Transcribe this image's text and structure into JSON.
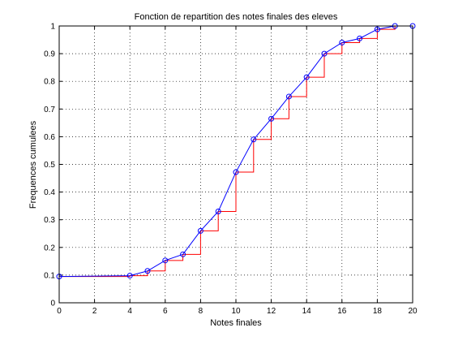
{
  "chart_data": {
    "type": "line",
    "title": "Fonction de repartition des notes finales des eleves",
    "xlabel": "Notes finales",
    "ylabel": "Frequences cumulees",
    "xlim": [
      0,
      20
    ],
    "ylim": [
      0,
      1
    ],
    "grid": true,
    "x_ticks": [
      0,
      2,
      4,
      6,
      8,
      10,
      12,
      14,
      16,
      18,
      20
    ],
    "y_ticks": [
      0,
      0.1,
      0.2,
      0.3,
      0.4,
      0.5,
      0.6,
      0.7,
      0.8,
      0.9,
      1
    ],
    "x": [
      0,
      4,
      5,
      6,
      7,
      8,
      9,
      10,
      11,
      12,
      13,
      14,
      15,
      16,
      17,
      18,
      19,
      20
    ],
    "series": [
      {
        "style": "line-with-circle-markers",
        "color": "#0000ff",
        "values": [
          0.095,
          0.098,
          0.115,
          0.153,
          0.175,
          0.26,
          0.33,
          0.472,
          0.59,
          0.665,
          0.745,
          0.815,
          0.9,
          0.94,
          0.955,
          0.988,
          1.0,
          1.0
        ]
      },
      {
        "style": "step",
        "color": "#ff0000",
        "values": [
          0.095,
          0.098,
          0.115,
          0.153,
          0.175,
          0.26,
          0.33,
          0.472,
          0.59,
          0.665,
          0.745,
          0.815,
          0.9,
          0.94,
          0.955,
          0.988,
          1.0,
          1.0
        ]
      }
    ]
  }
}
